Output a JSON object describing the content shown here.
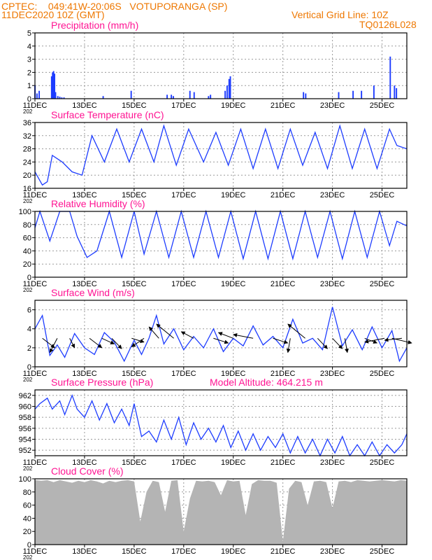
{
  "header": {
    "line1": "CPTEC:    049:41W-20:06S   VOTUPORANGA (SP)",
    "line2": "11DEC2020 10Z (GMT)",
    "grid_note": "Vertical Grid Line: 10Z",
    "code": "TQ0126L028"
  },
  "colors": {
    "header": "#ee7700",
    "title": "#ff1493",
    "series": "#1d3cff",
    "cloud": "#b4b4b4"
  },
  "x_axis": {
    "tick_labels": [
      "11DEC",
      "13DEC",
      "15DEC",
      "17DEC",
      "19DEC",
      "21DEC",
      "23DEC",
      "25DEC"
    ],
    "year_stub": "202",
    "range_days": [
      0,
      15
    ],
    "start": "2020-12-11 10Z"
  },
  "model_altitude": "Model Altitude: 464.215 m",
  "chart_data": [
    {
      "type": "bar",
      "title": "Precipitation (mm/h)",
      "ylim": [
        0,
        5
      ],
      "yticks": [
        0,
        1,
        2,
        3,
        4,
        5
      ],
      "x": [
        0.0,
        0.08,
        0.17,
        0.67,
        0.71,
        0.75,
        0.79,
        0.83,
        0.92,
        1.0,
        1.08,
        1.17,
        2.75,
        3.88,
        5.33,
        5.5,
        5.58,
        6.25,
        6.42,
        7.0,
        7.08,
        7.67,
        7.75,
        7.83,
        7.88,
        10.83,
        10.92,
        12.25,
        12.83,
        13.17,
        13.67,
        14.33,
        14.5,
        14.58
      ],
      "values": [
        1.0,
        0.4,
        0.6,
        1.7,
        2.0,
        2.1,
        1.9,
        0.5,
        0.2,
        0.15,
        0.1,
        0.1,
        0.2,
        0.6,
        0.3,
        0.3,
        0.2,
        0.6,
        0.5,
        0.2,
        0.3,
        0.6,
        1.0,
        1.5,
        1.7,
        0.5,
        0.4,
        0.5,
        0.6,
        0.6,
        1.0,
        3.2,
        1.0,
        0.8
      ]
    },
    {
      "type": "line",
      "title": "Surface Temperature (nC)",
      "ylim": [
        16,
        36
      ],
      "yticks": [
        16,
        20,
        24,
        28,
        32,
        36
      ],
      "x": [
        0.0,
        0.3,
        0.5,
        0.7,
        1.1,
        1.5,
        1.9,
        2.3,
        2.8,
        3.3,
        3.8,
        4.3,
        4.8,
        5.2,
        5.7,
        6.2,
        6.8,
        7.3,
        7.8,
        8.3,
        8.8,
        9.3,
        9.8,
        10.3,
        10.8,
        11.3,
        11.8,
        12.3,
        12.8,
        13.3,
        13.8,
        14.3,
        14.6,
        15.0
      ],
      "values": [
        21,
        17,
        18,
        26,
        24,
        21,
        20,
        32,
        24,
        34,
        24,
        34,
        24,
        35,
        23,
        34,
        24,
        33,
        23,
        34,
        22,
        34,
        22,
        34,
        23,
        33,
        22,
        35,
        22,
        34,
        22,
        34,
        29,
        28
      ]
    },
    {
      "type": "line",
      "title": "Relative Humidity (%)",
      "ylim": [
        0,
        100
      ],
      "yticks": [
        0,
        20,
        40,
        60,
        80,
        100
      ],
      "x": [
        0.0,
        0.2,
        0.6,
        1.0,
        1.4,
        1.7,
        2.1,
        2.5,
        3.0,
        3.5,
        4.0,
        4.4,
        4.9,
        5.4,
        5.9,
        6.4,
        6.9,
        7.4,
        7.9,
        8.4,
        8.9,
        9.4,
        9.9,
        10.4,
        10.9,
        11.4,
        11.9,
        12.4,
        12.9,
        13.4,
        13.9,
        14.3,
        14.6,
        15.0
      ],
      "values": [
        75,
        100,
        55,
        100,
        100,
        62,
        30,
        40,
        100,
        30,
        100,
        35,
        100,
        30,
        100,
        30,
        100,
        30,
        100,
        28,
        100,
        28,
        100,
        28,
        100,
        30,
        100,
        28,
        100,
        30,
        100,
        48,
        85,
        78
      ]
    },
    {
      "type": "line",
      "title": "Surface Wind (m/s)",
      "ylim": [
        0,
        7
      ],
      "yticks": [
        0,
        2,
        4,
        6
      ],
      "x": [
        0.0,
        0.3,
        0.6,
        0.9,
        1.2,
        1.6,
        2.0,
        2.4,
        2.8,
        3.2,
        3.6,
        4.0,
        4.3,
        4.6,
        4.9,
        5.2,
        5.6,
        6.0,
        6.4,
        6.8,
        7.2,
        7.6,
        8.0,
        8.4,
        8.8,
        9.2,
        9.6,
        10.0,
        10.4,
        10.8,
        11.2,
        11.6,
        12.0,
        12.4,
        12.8,
        13.2,
        13.6,
        14.0,
        14.4,
        14.7,
        15.0
      ],
      "values": [
        4.0,
        5.4,
        1.2,
        2.3,
        1.0,
        3.5,
        2.0,
        1.3,
        3.6,
        2.6,
        0.6,
        2.8,
        1.3,
        3.0,
        5.4,
        2.4,
        4.0,
        1.8,
        3.2,
        2.0,
        4.0,
        1.6,
        3.0,
        2.2,
        4.3,
        2.3,
        3.2,
        2.0,
        5.0,
        2.5,
        3.0,
        1.8,
        6.3,
        2.2,
        3.9,
        1.8,
        4.2,
        2.0,
        3.8,
        0.6,
        2.0
      ]
    },
    {
      "type": "line",
      "title": "Surface Pressure (hPa)",
      "ylim": [
        951,
        963
      ],
      "yticks": [
        952,
        954,
        956,
        958,
        960,
        962
      ],
      "x": [
        0.0,
        0.2,
        0.5,
        0.7,
        1.0,
        1.2,
        1.5,
        1.7,
        2.0,
        2.3,
        2.6,
        2.9,
        3.2,
        3.5,
        3.8,
        4.0,
        4.3,
        4.6,
        4.9,
        5.2,
        5.5,
        5.8,
        6.1,
        6.4,
        6.7,
        7.0,
        7.3,
        7.6,
        7.9,
        8.2,
        8.5,
        8.8,
        9.1,
        9.4,
        9.7,
        10.0,
        10.3,
        10.6,
        10.9,
        11.2,
        11.5,
        11.8,
        12.1,
        12.4,
        12.7,
        13.0,
        13.3,
        13.6,
        13.9,
        14.2,
        14.5,
        14.8,
        15.0
      ],
      "values": [
        959.5,
        960.5,
        961.5,
        959.5,
        961.0,
        958.5,
        962.0,
        959.5,
        958.0,
        961.0,
        957.5,
        960.5,
        957.0,
        959.5,
        956.5,
        960.5,
        954.5,
        955.5,
        953.5,
        957.5,
        954.0,
        958.0,
        953.0,
        957.0,
        954.0,
        956.0,
        953.5,
        956.5,
        952.5,
        955.5,
        952.0,
        955.0,
        952.0,
        954.5,
        952.5,
        955.0,
        951.5,
        954.5,
        951.5,
        954.0,
        951.0,
        954.0,
        951.5,
        954.5,
        951.0,
        953.0,
        951.0,
        953.5,
        951.0,
        953.0,
        951.5,
        953.0,
        955.0
      ]
    },
    {
      "type": "area",
      "title": "Cloud Cover (%)",
      "ylim": [
        0,
        100
      ],
      "yticks": [
        0,
        20,
        40,
        60,
        80,
        100
      ],
      "x": [
        0.0,
        0.25,
        0.5,
        0.75,
        1.0,
        1.25,
        1.5,
        1.75,
        2.0,
        2.25,
        2.5,
        2.75,
        3.0,
        3.25,
        3.5,
        3.75,
        4.0,
        4.25,
        4.5,
        4.75,
        5.0,
        5.25,
        5.5,
        5.75,
        6.0,
        6.25,
        6.5,
        6.75,
        7.0,
        7.25,
        7.5,
        7.75,
        8.0,
        8.25,
        8.5,
        8.75,
        9.0,
        9.25,
        9.5,
        9.75,
        10.0,
        10.25,
        10.5,
        10.75,
        11.0,
        11.25,
        11.5,
        11.75,
        12.0,
        12.25,
        12.5,
        12.75,
        13.0,
        13.25,
        13.5,
        13.75,
        14.0,
        14.25,
        14.5,
        14.75,
        15.0
      ],
      "values": [
        98,
        97,
        98,
        95,
        98,
        96,
        94,
        97,
        95,
        98,
        96,
        93,
        97,
        95,
        97,
        98,
        96,
        35,
        80,
        97,
        95,
        50,
        97,
        98,
        20,
        70,
        97,
        96,
        97,
        95,
        75,
        98,
        96,
        97,
        45,
        92,
        98,
        97,
        97,
        94,
        5,
        85,
        97,
        95,
        60,
        96,
        97,
        95,
        55,
        96,
        97,
        95,
        98,
        97,
        96,
        97,
        98,
        97,
        96,
        98,
        97
      ]
    }
  ],
  "wind_barbs": {
    "x": [
      0.3,
      0.9,
      1.4,
      2.2,
      2.7,
      3.1,
      3.9,
      4.4,
      5.0,
      5.6,
      6.4,
      7.2,
      8.0,
      8.8,
      9.6,
      10.3,
      10.9,
      11.4,
      12.0,
      12.5,
      13.3,
      14.1,
      14.4,
      14.8
    ],
    "dx": [
      0.5,
      -0.3,
      0.2,
      0.5,
      0.5,
      0.4,
      0.5,
      -0.5,
      -0.4,
      -0.7,
      -0.5,
      0.6,
      -0.6,
      -0.8,
      0.6,
      -0.1,
      -0.7,
      0.4,
      0.4,
      0.1,
      0.5,
      -0.8,
      0.8,
      -0.7
    ],
    "dy": [
      -1.0,
      -1.5,
      -1.0,
      -1.0,
      -0.6,
      -1.1,
      -0.4,
      -0.9,
      1.2,
      1.5,
      0.7,
      -0.5,
      0.6,
      0.4,
      -0.5,
      -1.5,
      1.5,
      -1.1,
      -1.1,
      -1.5,
      -0.5,
      -0.4,
      -0.5,
      -0.2
    ]
  }
}
